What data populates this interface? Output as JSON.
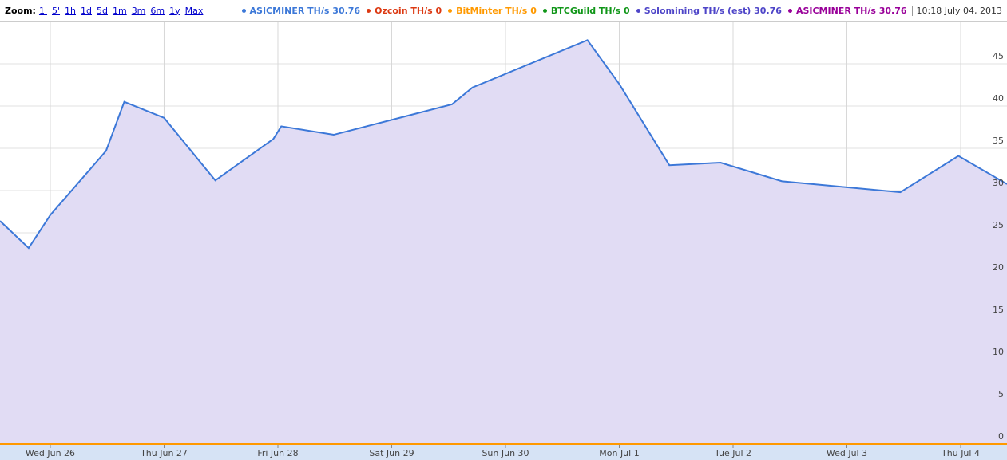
{
  "zoom": {
    "label": "Zoom:",
    "options": [
      "1'",
      "5'",
      "1h",
      "1d",
      "5d",
      "1m",
      "3m",
      "6m",
      "1y",
      "Max"
    ]
  },
  "timestamp": "10:18 July 04, 2013",
  "chart_data": {
    "type": "area",
    "series": [
      {
        "name": "ASICMINER TH/s",
        "current": 30.76,
        "color": "#3c78d8",
        "fill": "#e1dcf4",
        "x": [
          -0.442,
          -0.19,
          0,
          0.49,
          0.65,
          1.0,
          1.45,
          1.96,
          2.03,
          2.49,
          3.53,
          3.71,
          4.72,
          5.0,
          5.44,
          5.89,
          6.43,
          7.47,
          7.98,
          8.407
        ],
        "values": [
          26.4,
          23.2,
          27.1,
          34.7,
          40.5,
          38.6,
          31.2,
          36.1,
          37.6,
          36.6,
          40.2,
          42.2,
          47.8,
          42.6,
          33.0,
          33.3,
          31.1,
          29.8,
          34.1,
          30.76
        ]
      },
      {
        "name": "Ozcoin TH/s",
        "current": 0,
        "color": "#dc3912"
      },
      {
        "name": "BitMinter TH/s",
        "current": 0,
        "color": "#ff9900",
        "x": [
          -0.442,
          8.407
        ],
        "values": [
          0,
          0
        ]
      },
      {
        "name": "BTCGuild TH/s",
        "current": 0,
        "color": "#109618"
      },
      {
        "name": "Solomining TH/s (est)",
        "current": 30.76,
        "color": "#4e45c8"
      },
      {
        "name": "ASICMINER TH/s",
        "current": 30.76,
        "color": "#990099"
      }
    ],
    "xlim": [
      -0.442,
      8.407
    ],
    "xticks": [
      {
        "value": 0,
        "label": "Wed Jun 26"
      },
      {
        "value": 1,
        "label": "Thu Jun 27"
      },
      {
        "value": 2,
        "label": "Fri Jun 28"
      },
      {
        "value": 3,
        "label": "Sat Jun 29"
      },
      {
        "value": 4,
        "label": "Sun Jun 30"
      },
      {
        "value": 5,
        "label": "Mon Jul 1"
      },
      {
        "value": 6,
        "label": "Tue Jul 2"
      },
      {
        "value": 7,
        "label": "Wed Jul 3"
      },
      {
        "value": 8,
        "label": "Thu Jul 4"
      }
    ],
    "ylim": [
      0,
      50
    ],
    "yticks": [
      0,
      5,
      10,
      15,
      20,
      25,
      30,
      35,
      40,
      45
    ],
    "grid": true
  }
}
